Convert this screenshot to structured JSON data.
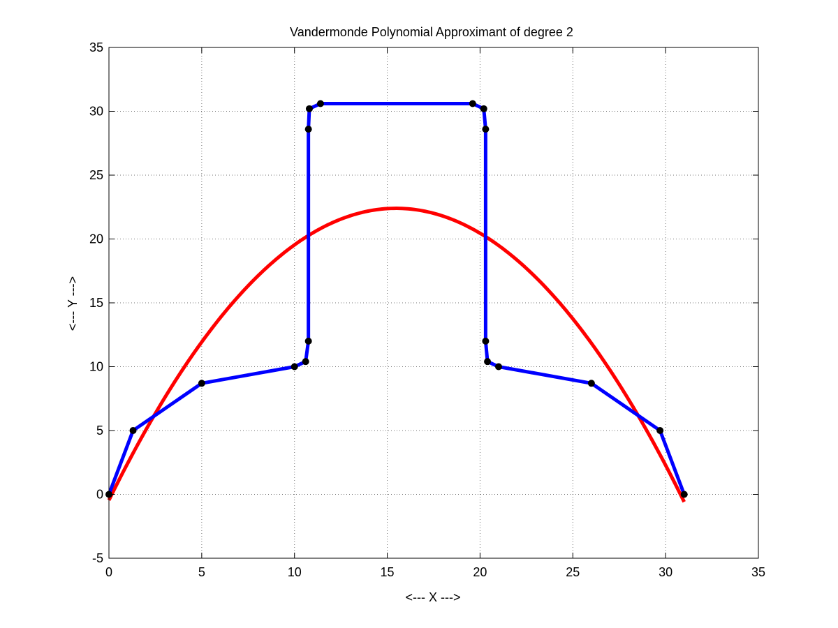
{
  "chart_data": {
    "type": "line",
    "title": "Vandermonde Polynomial Approximant of degree 2",
    "xlabel": "<--- X --->",
    "ylabel": "<--- Y --->",
    "xlim": [
      0,
      35
    ],
    "ylim": [
      -5,
      35
    ],
    "xticks": [
      0,
      5,
      10,
      15,
      20,
      25,
      30,
      35
    ],
    "xtick_labels": [
      "0",
      "5",
      "10",
      "15",
      "20",
      "25",
      "30",
      "35"
    ],
    "yticks": [
      -5,
      0,
      5,
      10,
      15,
      20,
      25,
      30,
      35
    ],
    "ytick_labels": [
      "-5",
      "0",
      "5",
      "10",
      "15",
      "20",
      "25",
      "30",
      "35"
    ],
    "grid": true,
    "series": [
      {
        "kind": "data-points",
        "color": "#0000ff",
        "marker_color": "#000000",
        "x": [
          0,
          1.3,
          5,
          10,
          10.6,
          10.75,
          10.75,
          10.8,
          11.4,
          19.6,
          20.2,
          20.3,
          20.3,
          20.4,
          21,
          26,
          29.7,
          31
        ],
        "y": [
          0,
          5,
          8.7,
          10,
          10.4,
          12,
          28.6,
          30.2,
          30.6,
          30.6,
          30.2,
          28.6,
          12,
          10.4,
          10,
          8.7,
          5,
          0
        ]
      },
      {
        "kind": "degree-2-polynomial-fit",
        "color": "#ff0000",
        "coefficients": [
          -0.0954,
          2.953,
          -0.45
        ],
        "x_range": [
          0,
          31
        ]
      }
    ]
  }
}
